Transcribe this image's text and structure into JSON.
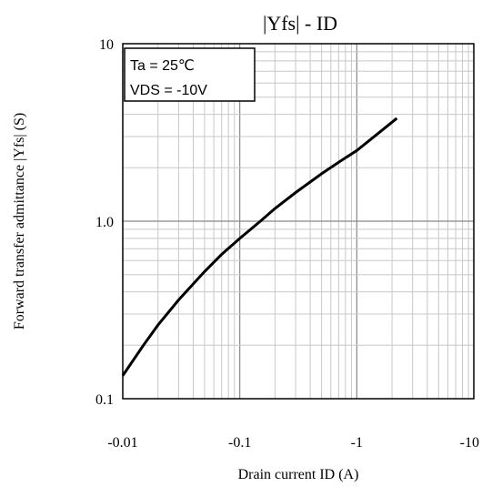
{
  "chart_data": {
    "type": "line",
    "title": "|Yfs| - ID",
    "xlabel": "Drain current ID (A)",
    "ylabel": "Forward transfer admittance |Yfs| (S)",
    "x_scale": "log",
    "y_scale": "log",
    "xlim": [
      -0.01,
      -10
    ],
    "ylim": [
      0.1,
      10
    ],
    "x_ticks": [
      "-0.01",
      "-0.1",
      "-1",
      "-10"
    ],
    "y_ticks": [
      "0.1",
      "1.0",
      "10"
    ],
    "grid": true,
    "annotation": [
      "Ta = 25℃",
      "VDS = -10V"
    ],
    "series": [
      {
        "x": [
          -0.01,
          -0.015,
          -0.02,
          -0.03,
          -0.05,
          -0.07,
          -0.1,
          -0.15,
          -0.2,
          -0.3,
          -0.5,
          -0.7,
          -1.0,
          -1.5,
          -2.2
        ],
        "y": [
          0.135,
          0.2,
          0.26,
          0.36,
          0.52,
          0.65,
          0.8,
          1.0,
          1.18,
          1.45,
          1.85,
          2.15,
          2.5,
          3.1,
          3.8
        ]
      }
    ]
  }
}
